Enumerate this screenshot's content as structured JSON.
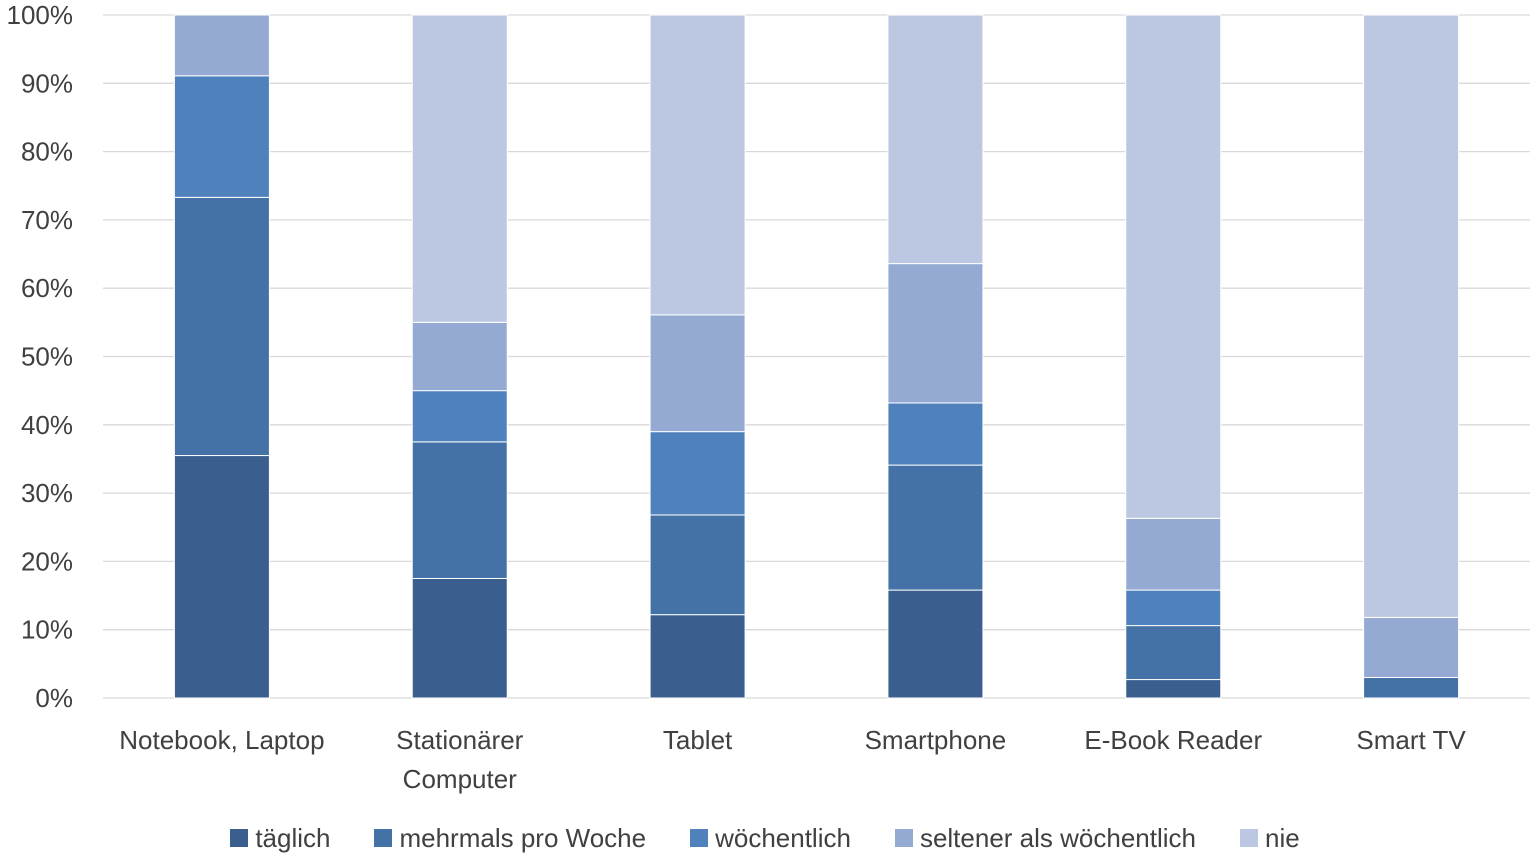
{
  "chart_data": {
    "type": "bar",
    "stacked": true,
    "percent": true,
    "categories": [
      [
        "Notebook, Laptop"
      ],
      [
        "Stationärer",
        "Computer"
      ],
      [
        "Tablet"
      ],
      [
        "Smartphone"
      ],
      [
        "E-Book Reader"
      ],
      [
        "Smart TV"
      ]
    ],
    "series": [
      {
        "name": "täglich",
        "color": "#3a5f8f",
        "values": [
          35.5,
          17.5,
          12.2,
          15.8,
          2.7,
          0.0
        ]
      },
      {
        "name": "mehrmals pro Woche",
        "color": "#4472a6",
        "values": [
          37.8,
          20.0,
          14.6,
          18.3,
          7.9,
          3.0
        ]
      },
      {
        "name": "wöchentlich",
        "color": "#4f81bd",
        "values": [
          17.8,
          7.5,
          12.2,
          9.1,
          5.2,
          0.0
        ]
      },
      {
        "name": "seltener als wöchentlich",
        "color": "#95aad2",
        "values": [
          8.9,
          10.0,
          17.1,
          20.4,
          10.5,
          8.8
        ]
      },
      {
        "name": "nie",
        "color": "#bcc8e1",
        "values": [
          0.0,
          45.0,
          43.9,
          36.4,
          73.7,
          88.2
        ]
      }
    ],
    "y_ticks": [
      "0%",
      "10%",
      "20%",
      "30%",
      "40%",
      "50%",
      "60%",
      "70%",
      "80%",
      "90%",
      "100%"
    ],
    "ylim": [
      0,
      100
    ],
    "grid": true,
    "legend_position": "bottom",
    "title": "",
    "xlabel": "",
    "ylabel": ""
  }
}
